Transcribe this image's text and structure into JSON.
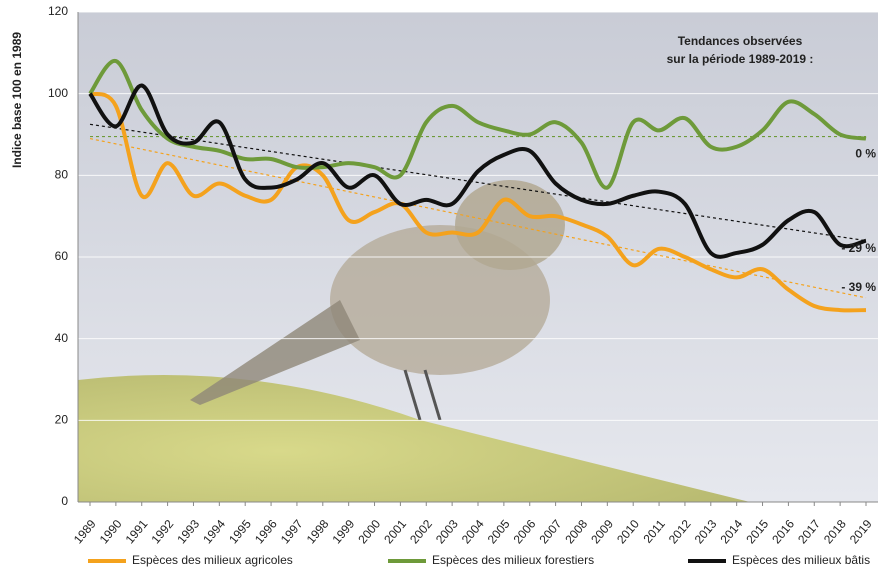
{
  "chart_data": {
    "type": "line",
    "y_label": "Indice base 100 en 1989",
    "annotations": [
      "Tendances observées",
      "sur la période 1989-2019 :"
    ],
    "categories": [
      "1989",
      "1990",
      "1991",
      "1992",
      "1993",
      "1994",
      "1995",
      "1996",
      "1997",
      "1998",
      "1999",
      "2000",
      "2001",
      "2002",
      "2003",
      "2004",
      "2005",
      "2006",
      "2007",
      "2008",
      "2009",
      "2010",
      "2011",
      "2012",
      "2013",
      "2014",
      "2015",
      "2016",
      "2017",
      "2018",
      "2019"
    ],
    "series": [
      {
        "name": "Espèces des milieux agricoles",
        "color": "#f4a21d",
        "trend": [
          89,
          50
        ],
        "trend_label": "- 39 %",
        "values": [
          100,
          97,
          75,
          83,
          75,
          78,
          75,
          74,
          82,
          80,
          69,
          71,
          73,
          66,
          66,
          66,
          74,
          70,
          70,
          68,
          65,
          58,
          62,
          60,
          57,
          55,
          57,
          52,
          48,
          47,
          47
        ]
      },
      {
        "name": "Espèces des milieux forestiers",
        "color": "#6e9a3a",
        "trend": [
          89.5,
          89.5
        ],
        "trend_label": "0 %",
        "values": [
          100,
          108,
          96,
          89,
          87,
          86,
          84,
          84,
          82,
          82,
          83,
          82,
          80,
          93,
          97,
          93,
          91,
          90,
          93,
          88,
          77,
          93,
          91,
          94,
          87,
          87,
          91,
          98,
          95,
          90,
          89
        ]
      },
      {
        "name": "Espèces des milieux bâtis",
        "color": "#111111",
        "trend": [
          92.5,
          64
        ],
        "trend_label": "- 29 %",
        "values": [
          100,
          92,
          102,
          90,
          88,
          93,
          79,
          77,
          79,
          83,
          77,
          80,
          73,
          74,
          73,
          81,
          85,
          86,
          78,
          74,
          73,
          75,
          76,
          73,
          61,
          61,
          63,
          69,
          71,
          63,
          64
        ]
      }
    ],
    "ylim": [
      0,
      120
    ],
    "yticks": [
      0,
      20,
      40,
      60,
      80,
      100,
      120
    ],
    "grid": true
  }
}
